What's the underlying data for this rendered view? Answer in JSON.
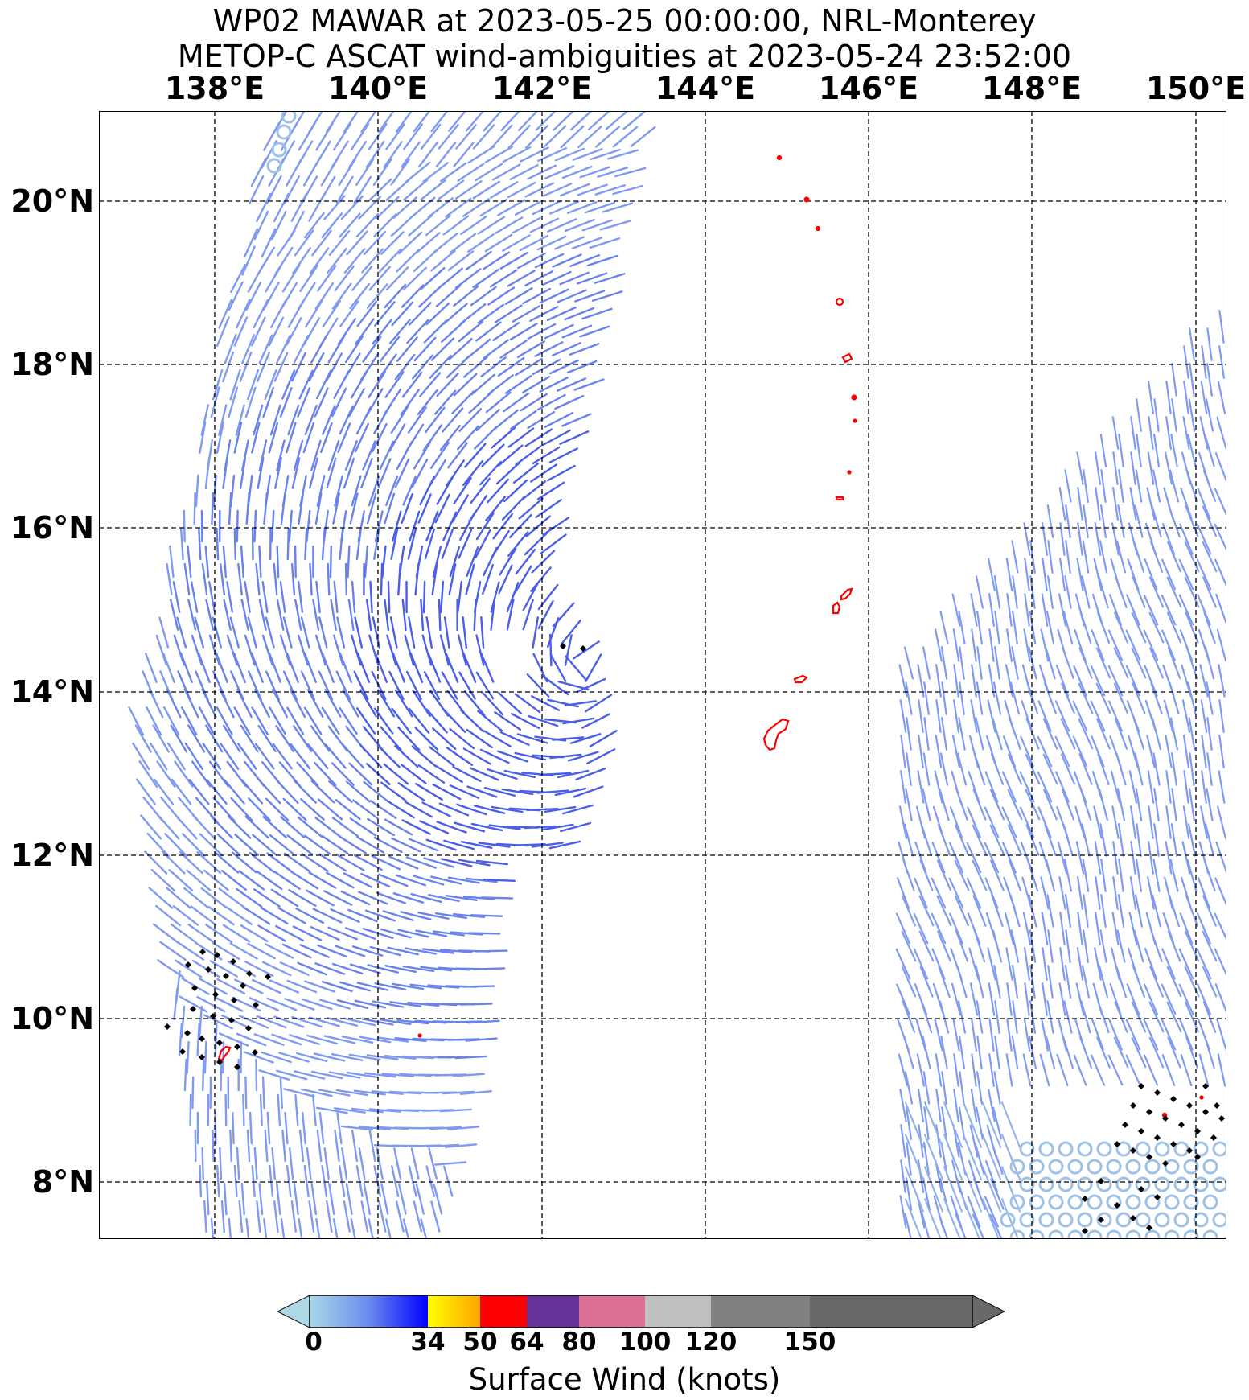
{
  "header": {
    "title_line1": "WP02 MAWAR at 2023-05-25 00:00:00, NRL-Monterey",
    "title_line2": "METOP-C ASCAT wind-ambiguities at 2023-05-24 23:52:00"
  },
  "map": {
    "lon_range": [
      136.6,
      150.4
    ],
    "lat_range": [
      7.4,
      21.2
    ],
    "lon_labels": [
      "138°E",
      "140°E",
      "142°E",
      "144°E",
      "146°E",
      "148°E",
      "150°E"
    ],
    "lon_values": [
      138,
      140,
      142,
      144,
      146,
      148,
      150
    ],
    "lat_labels": [
      "20°N",
      "18°N",
      "16°N",
      "14°N",
      "12°N",
      "10°N",
      "8°N"
    ],
    "lat_values": [
      20,
      18,
      16,
      14,
      12,
      10,
      8
    ],
    "storm_center": {
      "lon": 142.6,
      "lat": 14.45
    },
    "colors": {
      "coast": "#ff0000",
      "grid": "#000000",
      "rain_flag": "#000000"
    }
  },
  "colorbar": {
    "tick_labels": [
      "0",
      "34",
      "50",
      "64",
      "80",
      "100",
      "120",
      "150"
    ],
    "tick_values": [
      0,
      34,
      50,
      64,
      80,
      100,
      120,
      150
    ],
    "segments": [
      {
        "from": 0,
        "to": 34,
        "colors": [
          "#a8d8e8",
          "#6a8cf0",
          "#0000ff"
        ]
      },
      {
        "from": 34,
        "to": 50,
        "colors": [
          "#ffff00",
          "#ffa500"
        ]
      },
      {
        "from": 50,
        "to": 64,
        "colors": [
          "#ff0000"
        ]
      },
      {
        "from": 64,
        "to": 80,
        "colors": [
          "#663399"
        ]
      },
      {
        "from": 80,
        "to": 100,
        "colors": [
          "#db7093"
        ]
      },
      {
        "from": 100,
        "to": 120,
        "colors": [
          "#c0c0c0"
        ]
      },
      {
        "from": 120,
        "to": 150,
        "colors": [
          "#808080"
        ]
      },
      {
        "from": 150,
        "to": 200,
        "colors": [
          "#696969"
        ]
      }
    ],
    "label": "Surface Wind (knots)"
  }
}
